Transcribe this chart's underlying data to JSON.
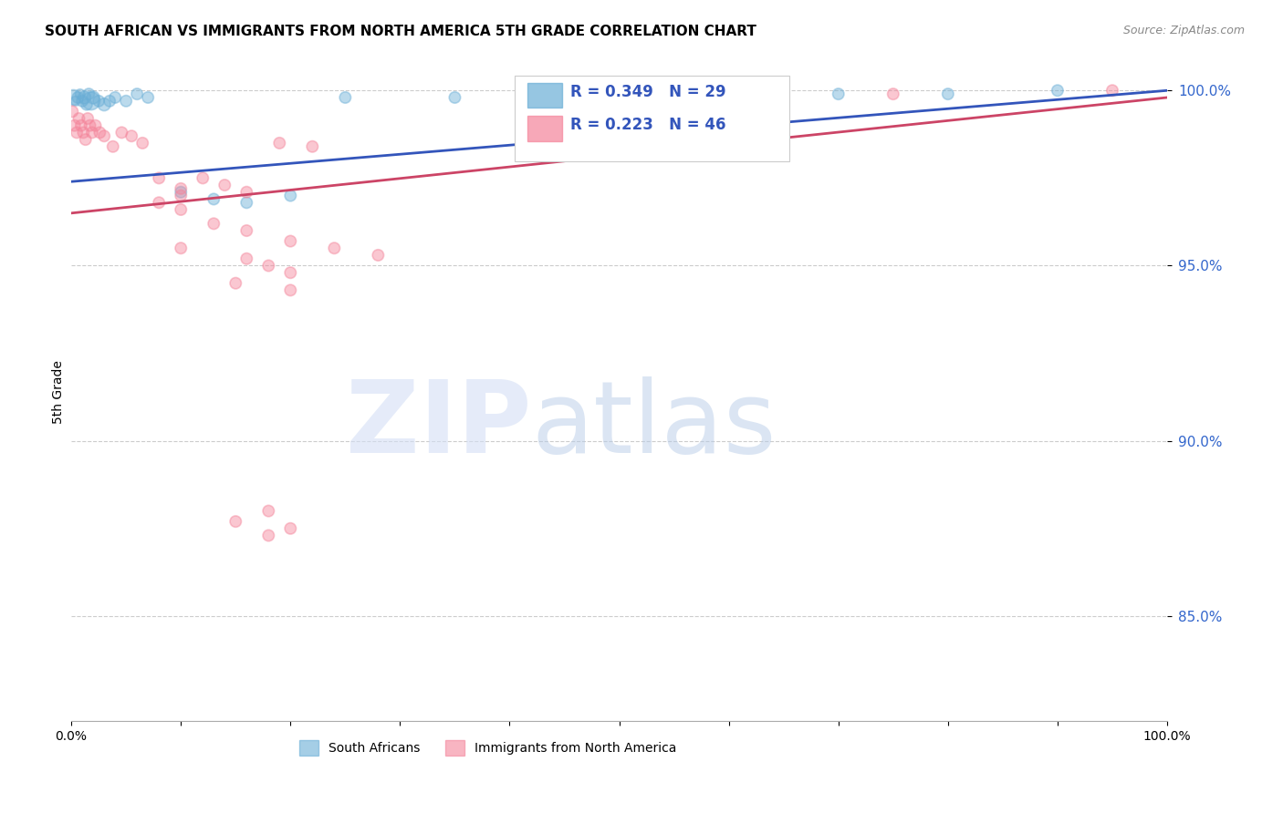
{
  "title": "SOUTH AFRICAN VS IMMIGRANTS FROM NORTH AMERICA 5TH GRADE CORRELATION CHART",
  "source": "Source: ZipAtlas.com",
  "ylabel": "5th Grade",
  "xlim": [
    0.0,
    1.0
  ],
  "ylim": [
    0.82,
    1.008
  ],
  "yticks": [
    0.85,
    0.9,
    0.95,
    1.0
  ],
  "ytick_labels": [
    "85.0%",
    "90.0%",
    "95.0%",
    "100.0%"
  ],
  "legend_label1": "South Africans",
  "legend_label2": "Immigrants from North America",
  "r1": 0.349,
  "n1": 29,
  "r2": 0.223,
  "n2": 46,
  "color_blue": "#6aaed6",
  "color_pink": "#f4849a",
  "trendline_blue": "#3355bb",
  "trendline_pink": "#cc4466",
  "blue_scatter_x": [
    0.002,
    0.004,
    0.006,
    0.008,
    0.01,
    0.012,
    0.014,
    0.016,
    0.018,
    0.02,
    0.025,
    0.03,
    0.035,
    0.04,
    0.05,
    0.06,
    0.07,
    0.1,
    0.13,
    0.16,
    0.2,
    0.25,
    0.35,
    0.45,
    0.52,
    0.6,
    0.7,
    0.8,
    0.9
  ],
  "blue_scatter_y": [
    0.998,
    0.997,
    0.998,
    0.999,
    0.997,
    0.998,
    0.996,
    0.999,
    0.997,
    0.998,
    0.997,
    0.996,
    0.997,
    0.998,
    0.997,
    0.999,
    0.998,
    0.971,
    0.969,
    0.968,
    0.97,
    0.998,
    0.998,
    0.999,
    0.999,
    0.999,
    0.999,
    0.999,
    1.0
  ],
  "blue_scatter_size": [
    150,
    60,
    80,
    60,
    80,
    100,
    80,
    80,
    200,
    100,
    80,
    100,
    80,
    80,
    80,
    80,
    80,
    80,
    80,
    80,
    80,
    80,
    80,
    80,
    80,
    80,
    80,
    80,
    80
  ],
  "pink_scatter_x": [
    0.001,
    0.003,
    0.005,
    0.007,
    0.009,
    0.011,
    0.013,
    0.015,
    0.017,
    0.019,
    0.022,
    0.026,
    0.03,
    0.038,
    0.046,
    0.055,
    0.065,
    0.08,
    0.1,
    0.1,
    0.12,
    0.14,
    0.16,
    0.19,
    0.22,
    0.08,
    0.1,
    0.13,
    0.16,
    0.2,
    0.24,
    0.28,
    0.1,
    0.16,
    0.18,
    0.2,
    0.15,
    0.2,
    0.18,
    0.15,
    0.2,
    0.18,
    0.95,
    0.55,
    0.65,
    0.75
  ],
  "pink_scatter_y": [
    0.994,
    0.99,
    0.988,
    0.992,
    0.99,
    0.988,
    0.986,
    0.992,
    0.99,
    0.988,
    0.99,
    0.988,
    0.987,
    0.984,
    0.988,
    0.987,
    0.985,
    0.975,
    0.972,
    0.97,
    0.975,
    0.973,
    0.971,
    0.985,
    0.984,
    0.968,
    0.966,
    0.962,
    0.96,
    0.957,
    0.955,
    0.953,
    0.955,
    0.952,
    0.95,
    0.948,
    0.945,
    0.943,
    0.88,
    0.877,
    0.875,
    0.873,
    1.0,
    0.999,
    0.999,
    0.999
  ],
  "pink_scatter_size": [
    80,
    80,
    80,
    80,
    80,
    80,
    80,
    80,
    80,
    80,
    80,
    80,
    80,
    80,
    80,
    80,
    80,
    80,
    80,
    80,
    80,
    80,
    80,
    80,
    80,
    80,
    80,
    80,
    80,
    80,
    80,
    80,
    80,
    80,
    80,
    80,
    80,
    80,
    80,
    80,
    80,
    80,
    80,
    80,
    80,
    80
  ]
}
